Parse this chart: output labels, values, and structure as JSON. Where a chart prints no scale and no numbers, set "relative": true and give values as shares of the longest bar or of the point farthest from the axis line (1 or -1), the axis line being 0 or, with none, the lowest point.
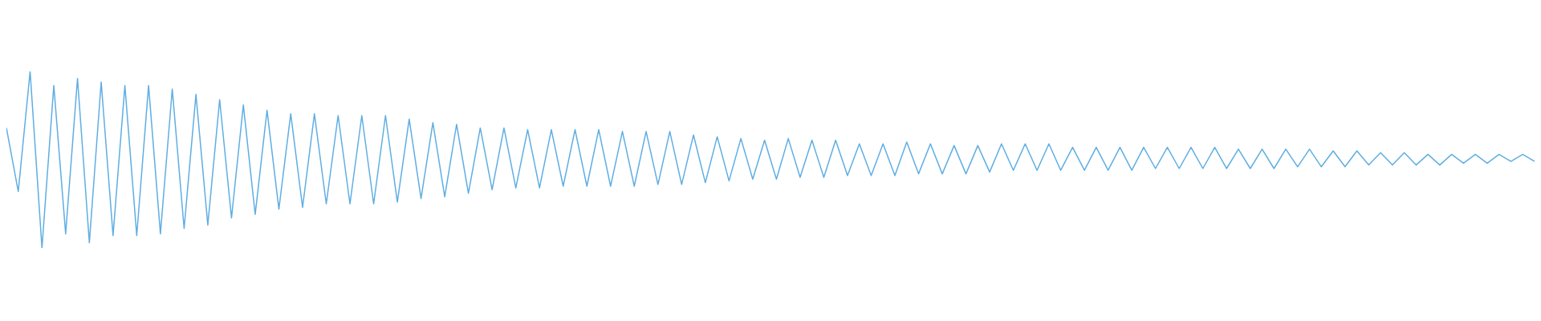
{
  "chart_data": {
    "type": "line",
    "relative": true,
    "tick_labels": false,
    "color": "#5faee3",
    "categories": [
      null,
      null,
      null,
      null,
      null,
      null,
      null,
      null,
      null,
      null,
      null,
      null,
      null,
      null,
      null,
      null,
      null,
      null,
      null,
      null,
      null,
      null,
      null,
      null,
      null,
      null,
      null,
      null,
      null,
      null,
      null,
      null,
      null,
      null,
      null,
      null,
      null,
      null,
      null,
      null,
      null,
      null,
      null,
      null,
      null,
      null,
      null,
      null,
      null,
      null,
      null,
      null,
      null,
      null,
      null,
      null,
      null,
      null,
      null,
      null,
      null,
      null,
      null,
      null,
      null,
      null,
      null,
      null,
      null,
      null,
      null,
      null,
      null,
      null,
      null,
      null,
      null,
      null,
      null,
      null,
      null,
      null,
      null,
      null,
      null,
      null,
      null,
      null,
      null,
      null,
      null,
      null,
      null,
      null,
      null,
      null,
      null,
      null,
      null,
      null,
      null,
      null,
      null,
      null,
      null,
      null,
      null,
      null,
      null,
      null,
      null,
      null,
      null,
      null,
      null,
      null,
      null,
      null,
      null,
      null,
      null,
      null,
      null,
      null,
      null,
      null,
      null,
      null,
      null,
      null
    ],
    "values": [
      0.68,
      0.32,
      1,
      0,
      0.92,
      0.08,
      0.96,
      0.03,
      0.94,
      0.07,
      0.92,
      0.07,
      0.92,
      0.08,
      0.9,
      0.11,
      0.87,
      0.13,
      0.84,
      0.17,
      0.81,
      0.19,
      0.78,
      0.22,
      0.76,
      0.23,
      0.76,
      0.25,
      0.75,
      0.25,
      0.75,
      0.25,
      0.75,
      0.26,
      0.73,
      0.28,
      0.71,
      0.29,
      0.7,
      0.31,
      0.68,
      0.33,
      0.68,
      0.34,
      0.67,
      0.34,
      0.67,
      0.35,
      0.67,
      0.35,
      0.67,
      0.35,
      0.66,
      0.35,
      0.66,
      0.36,
      0.66,
      0.36,
      0.64,
      0.37,
      0.63,
      0.38,
      0.62,
      0.39,
      0.61,
      0.39,
      0.62,
      0.4,
      0.61,
      0.4,
      0.61,
      0.41,
      0.59,
      0.41,
      0.59,
      0.41,
      0.6,
      0.42,
      0.59,
      0.42,
      0.58,
      0.42,
      0.58,
      0.43,
      0.59,
      0.44,
      0.59,
      0.44,
      0.59,
      0.44,
      0.57,
      0.44,
      0.57,
      0.44,
      0.57,
      0.44,
      0.57,
      0.45,
      0.57,
      0.45,
      0.57,
      0.45,
      0.57,
      0.45,
      0.56,
      0.45,
      0.56,
      0.45,
      0.56,
      0.46,
      0.56,
      0.46,
      0.55,
      0.46,
      0.55,
      0.47,
      0.54,
      0.47,
      0.54,
      0.47,
      0.53,
      0.47,
      0.53,
      0.48,
      0.53,
      0.48,
      0.53,
      0.49,
      0.53,
      0.49
    ]
  }
}
